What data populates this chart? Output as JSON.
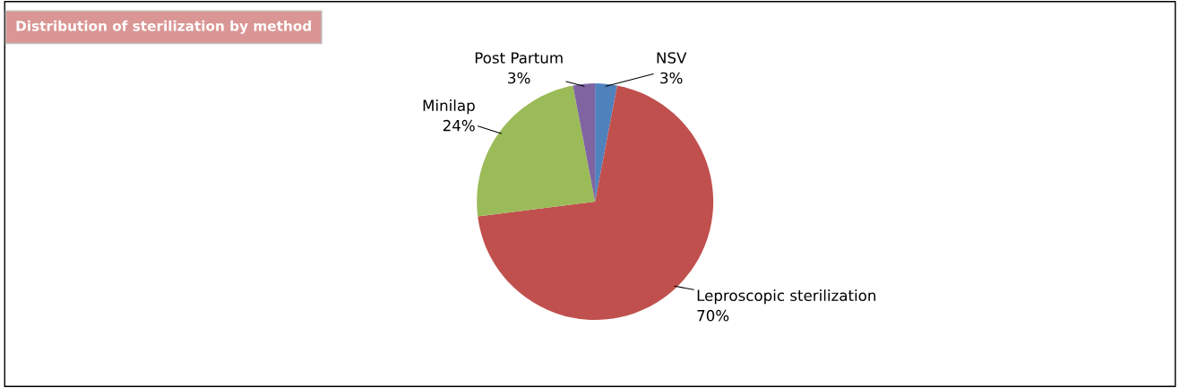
{
  "chart_data": {
    "type": "pie",
    "title": "Distribution of sterilization by method",
    "categories": [
      "NSV",
      "Leproscopic sterilization",
      "Minilap",
      "Post Partum"
    ],
    "values": [
      3,
      70,
      24,
      3
    ],
    "value_labels": [
      "3%",
      "70%",
      "24%",
      "3%"
    ],
    "colors": [
      "#4f81bd",
      "#c0504d",
      "#9bbb59",
      "#8064a2"
    ],
    "legend": false
  }
}
